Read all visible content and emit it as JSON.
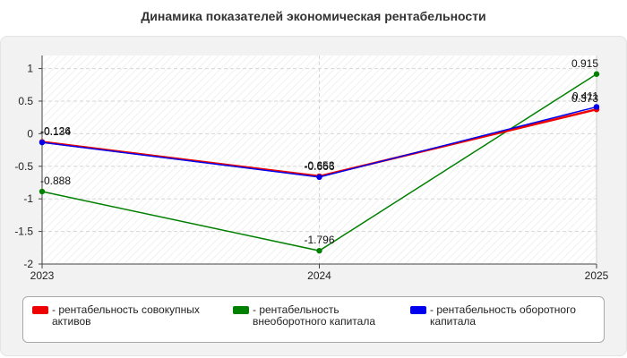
{
  "title": "Динамика показателей экономическая рентабельности",
  "colors": {
    "red": "#ee0000",
    "green": "#008000",
    "blue": "#0000ee",
    "grid": "#d6d6d6",
    "axis": "#444444"
  },
  "chart_data": {
    "type": "line",
    "categories": [
      "2023",
      "2024",
      "2025"
    ],
    "ylim": [
      -2,
      1.2
    ],
    "yticks": [
      -2,
      -1.5,
      -1,
      -0.5,
      0,
      0.5,
      1
    ],
    "ytick_labels": [
      "-2",
      "-1.5",
      "-1",
      "-0.5",
      "0",
      "0.5",
      "1"
    ],
    "grid": true,
    "legend_position": "bottom",
    "series": [
      {
        "name": "- рентабельность совокупных активов",
        "color": "#ee0000",
        "values": [
          -0.126,
          -0.653,
          0.373
        ],
        "labels": [
          "-0.126",
          "-0.653",
          "0.373"
        ]
      },
      {
        "name": "- рентабельность внеоборотного капитала",
        "color": "#008000",
        "values": [
          -0.888,
          -1.796,
          0.915
        ],
        "labels": [
          "-0.888",
          "-1.796",
          "0.915"
        ]
      },
      {
        "name": "- рентабельность оборотного капитала",
        "color": "#0000ee",
        "values": [
          -0.134,
          -0.666,
          0.411
        ],
        "labels": [
          "-0.134",
          "-0.666",
          "0.411"
        ]
      }
    ]
  }
}
